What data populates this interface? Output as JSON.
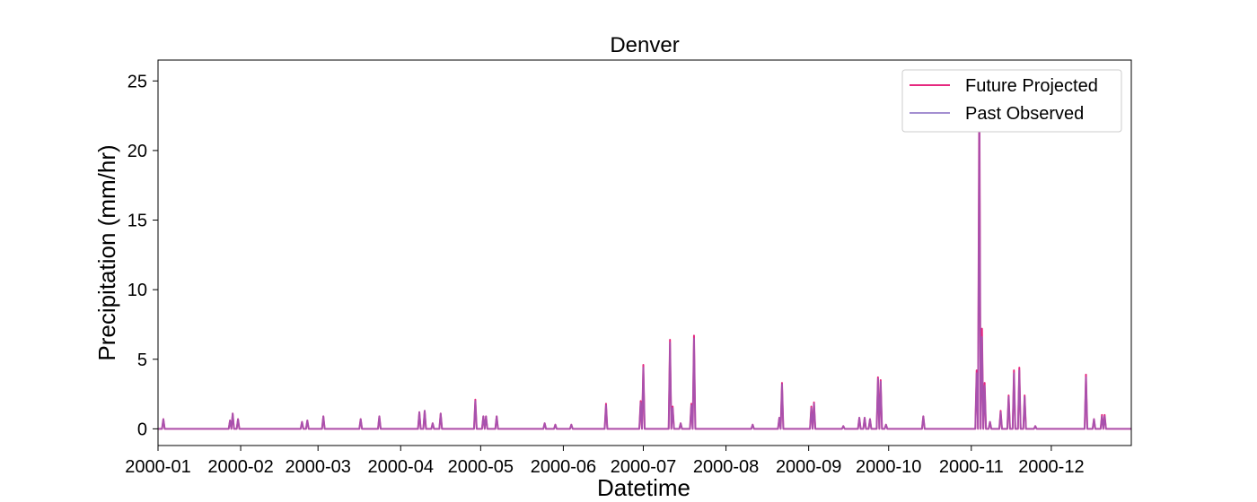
{
  "chart_data": {
    "type": "line",
    "title": "Denver",
    "xlabel": "Datetime",
    "ylabel": "Precipitation (mm/hr)",
    "x_tick_labels": [
      "2000-01",
      "2000-02",
      "2000-03",
      "2000-04",
      "2000-05",
      "2000-06",
      "2000-07",
      "2000-08",
      "2000-09",
      "2000-10",
      "2000-11",
      "2000-12"
    ],
    "x_tick_dates": [
      "2000-01-01",
      "2000-02-01",
      "2000-03-01",
      "2000-04-01",
      "2000-05-01",
      "2000-06-01",
      "2000-07-01",
      "2000-08-01",
      "2000-09-01",
      "2000-10-01",
      "2000-11-01",
      "2000-12-01"
    ],
    "xlim": [
      "2000-01-01",
      "2000-12-31"
    ],
    "y_ticks": [
      0,
      5,
      10,
      15,
      20,
      25
    ],
    "ylim": [
      -1.2,
      26.5
    ],
    "grid": false,
    "legend_position": "top-right",
    "series": [
      {
        "name": "Future Projected",
        "color": "#e6287f",
        "peaks": [
          [
            "2000-01-03",
            0.7
          ],
          [
            "2000-01-28",
            0.6
          ],
          [
            "2000-01-29",
            1.1
          ],
          [
            "2000-01-31",
            0.7
          ],
          [
            "2000-02-24",
            0.5
          ],
          [
            "2000-02-26",
            0.6
          ],
          [
            "2000-03-03",
            0.9
          ],
          [
            "2000-03-17",
            0.7
          ],
          [
            "2000-03-24",
            0.9
          ],
          [
            "2000-04-08",
            1.2
          ],
          [
            "2000-04-10",
            1.3
          ],
          [
            "2000-04-13",
            0.4
          ],
          [
            "2000-04-16",
            1.1
          ],
          [
            "2000-04-29",
            2.1
          ],
          [
            "2000-05-02",
            0.9
          ],
          [
            "2000-05-03",
            0.9
          ],
          [
            "2000-05-07",
            0.9
          ],
          [
            "2000-05-25",
            0.4
          ],
          [
            "2000-05-29",
            0.3
          ],
          [
            "2000-06-04",
            0.3
          ],
          [
            "2000-06-17",
            1.8
          ],
          [
            "2000-06-30",
            2.0
          ],
          [
            "2000-07-01",
            4.6
          ],
          [
            "2000-07-11",
            6.4
          ],
          [
            "2000-07-12",
            1.6
          ],
          [
            "2000-07-15",
            0.4
          ],
          [
            "2000-07-19",
            1.8
          ],
          [
            "2000-07-20",
            6.7
          ],
          [
            "2000-08-11",
            0.3
          ],
          [
            "2000-08-22",
            3.3
          ],
          [
            "2000-08-21",
            0.8
          ],
          [
            "2000-09-02",
            1.6
          ],
          [
            "2000-09-03",
            1.9
          ],
          [
            "2000-09-14",
            0.2
          ],
          [
            "2000-09-20",
            0.8
          ],
          [
            "2000-09-22",
            0.8
          ],
          [
            "2000-09-24",
            0.7
          ],
          [
            "2000-09-27",
            3.7
          ],
          [
            "2000-09-28",
            3.5
          ],
          [
            "2000-09-30",
            0.3
          ],
          [
            "2000-10-14",
            0.9
          ],
          [
            "2000-11-03",
            4.2
          ],
          [
            "2000-11-04",
            25.3
          ],
          [
            "2000-11-05",
            7.2
          ],
          [
            "2000-11-06",
            3.3
          ],
          [
            "2000-11-08",
            0.5
          ],
          [
            "2000-11-12",
            1.3
          ],
          [
            "2000-11-15",
            2.4
          ],
          [
            "2000-11-17",
            4.2
          ],
          [
            "2000-11-19",
            4.4
          ],
          [
            "2000-11-21",
            2.4
          ],
          [
            "2000-11-25",
            0.2
          ],
          [
            "2000-12-14",
            3.9
          ],
          [
            "2000-12-17",
            0.7
          ],
          [
            "2000-12-20",
            1.0
          ],
          [
            "2000-12-21",
            1.0
          ]
        ]
      },
      {
        "name": "Past Observed",
        "color": "#9b59b6",
        "peaks": [
          [
            "2000-01-03",
            0.7
          ],
          [
            "2000-01-28",
            0.6
          ],
          [
            "2000-01-29",
            1.1
          ],
          [
            "2000-01-31",
            0.7
          ],
          [
            "2000-02-24",
            0.5
          ],
          [
            "2000-02-26",
            0.6
          ],
          [
            "2000-03-03",
            0.9
          ],
          [
            "2000-03-17",
            0.7
          ],
          [
            "2000-03-24",
            0.9
          ],
          [
            "2000-04-08",
            1.2
          ],
          [
            "2000-04-10",
            1.3
          ],
          [
            "2000-04-13",
            0.4
          ],
          [
            "2000-04-16",
            1.1
          ],
          [
            "2000-04-29",
            2.0
          ],
          [
            "2000-05-02",
            0.9
          ],
          [
            "2000-05-03",
            0.9
          ],
          [
            "2000-05-07",
            0.9
          ],
          [
            "2000-05-25",
            0.4
          ],
          [
            "2000-05-29",
            0.3
          ],
          [
            "2000-06-04",
            0.3
          ],
          [
            "2000-06-17",
            1.7
          ],
          [
            "2000-06-30",
            1.9
          ],
          [
            "2000-07-01",
            4.4
          ],
          [
            "2000-07-11",
            6.2
          ],
          [
            "2000-07-12",
            1.5
          ],
          [
            "2000-07-15",
            0.4
          ],
          [
            "2000-07-19",
            1.7
          ],
          [
            "2000-07-20",
            6.5
          ],
          [
            "2000-08-11",
            0.3
          ],
          [
            "2000-08-22",
            3.2
          ],
          [
            "2000-08-21",
            0.8
          ],
          [
            "2000-09-02",
            1.5
          ],
          [
            "2000-09-03",
            1.8
          ],
          [
            "2000-09-14",
            0.2
          ],
          [
            "2000-09-20",
            0.8
          ],
          [
            "2000-09-22",
            0.8
          ],
          [
            "2000-09-24",
            0.7
          ],
          [
            "2000-09-27",
            3.6
          ],
          [
            "2000-09-28",
            3.4
          ],
          [
            "2000-09-30",
            0.3
          ],
          [
            "2000-10-14",
            0.9
          ],
          [
            "2000-11-03",
            4.0
          ],
          [
            "2000-11-04",
            23.0
          ],
          [
            "2000-11-05",
            6.6
          ],
          [
            "2000-11-06",
            3.1
          ],
          [
            "2000-11-08",
            0.5
          ],
          [
            "2000-11-12",
            1.2
          ],
          [
            "2000-11-15",
            2.3
          ],
          [
            "2000-11-17",
            4.0
          ],
          [
            "2000-11-19",
            4.2
          ],
          [
            "2000-11-21",
            2.3
          ],
          [
            "2000-11-25",
            0.2
          ],
          [
            "2000-12-14",
            3.7
          ],
          [
            "2000-12-17",
            0.7
          ],
          [
            "2000-12-20",
            0.9
          ],
          [
            "2000-12-21",
            0.9
          ]
        ]
      }
    ]
  }
}
